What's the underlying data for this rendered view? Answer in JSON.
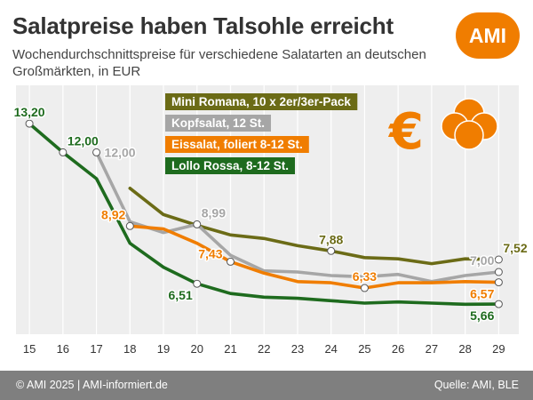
{
  "header": {
    "title": "Salatpreise haben Talsohle erreicht",
    "subtitle": "Wochendurchschnittspreise für verschiedene Salatarten an deutschen Großmärkten, in EUR",
    "logo": "AMI"
  },
  "footer": {
    "left": "© AMI 2025 | AMI-informiert.de",
    "right": "Quelle: AMI, BLE"
  },
  "decoration": {
    "euro_symbol": "€",
    "lettuce": "lettuce-icon"
  },
  "chart_data": {
    "type": "line",
    "title": "Salatpreise haben Talsohle erreicht",
    "subtitle": "Wochendurchschnittspreise für verschiedene Salatarten an deutschen Großmärkten, in EUR",
    "xlabel": "",
    "ylabel": "",
    "x": [
      15,
      16,
      17,
      18,
      19,
      20,
      21,
      22,
      23,
      24,
      25,
      26,
      27,
      28,
      29
    ],
    "xlim": [
      14.6,
      29.6
    ],
    "ylim": [
      4.4,
      14.8
    ],
    "grid": true,
    "legend_placement": "top-center",
    "series": [
      {
        "name": "Mini Romana, 10 x 2er/3er-Pack",
        "color": "#6b6b16",
        "values": [
          null,
          null,
          null,
          10.5,
          9.4,
          8.95,
          8.55,
          8.4,
          8.1,
          7.88,
          7.6,
          7.55,
          7.35,
          7.55,
          7.52
        ],
        "labels": [
          {
            "x": 24,
            "text": "7,88",
            "pos": "above"
          },
          {
            "x": 29,
            "text": "7,52",
            "pos": "above-right"
          }
        ]
      },
      {
        "name": "Kopfsalat, 12 St.",
        "color": "#a6a6a6",
        "values": [
          null,
          null,
          12.0,
          9.1,
          8.65,
          8.99,
          7.7,
          7.05,
          7.0,
          6.85,
          6.8,
          6.9,
          6.6,
          6.85,
          7.0
        ],
        "labels": [
          {
            "x": 17,
            "text": "12,00",
            "pos": "right"
          },
          {
            "x": 20,
            "text": "8,99",
            "pos": "above-right"
          },
          {
            "x": 29,
            "text": "7,00",
            "pos": "above-left"
          }
        ]
      },
      {
        "name": "Eissalat, foliert 8-12 St.",
        "color": "#f07d00",
        "values": [
          null,
          null,
          null,
          8.92,
          8.8,
          8.2,
          7.43,
          6.95,
          6.6,
          6.55,
          6.33,
          6.55,
          6.55,
          6.6,
          6.57
        ],
        "labels": [
          {
            "x": 18,
            "text": "8,92",
            "pos": "above-left"
          },
          {
            "x": 21,
            "text": "7,43",
            "pos": "left"
          },
          {
            "x": 25,
            "text": "6,33",
            "pos": "above"
          },
          {
            "x": 29,
            "text": "6,57",
            "pos": "below-left"
          }
        ]
      },
      {
        "name": "Lollo Rossa, 8-12 St.",
        "color": "#1e6b1e",
        "values": [
          13.2,
          12.0,
          10.9,
          8.2,
          7.2,
          6.51,
          6.1,
          5.95,
          5.9,
          5.8,
          5.7,
          5.75,
          5.7,
          5.65,
          5.66
        ],
        "labels": [
          {
            "x": 15,
            "text": "13,20",
            "pos": "above"
          },
          {
            "x": 16,
            "text": "12,00",
            "pos": "above-right"
          },
          {
            "x": 20,
            "text": "6,51",
            "pos": "below-left"
          },
          {
            "x": 29,
            "text": "5,66",
            "pos": "below-left"
          }
        ]
      }
    ]
  }
}
